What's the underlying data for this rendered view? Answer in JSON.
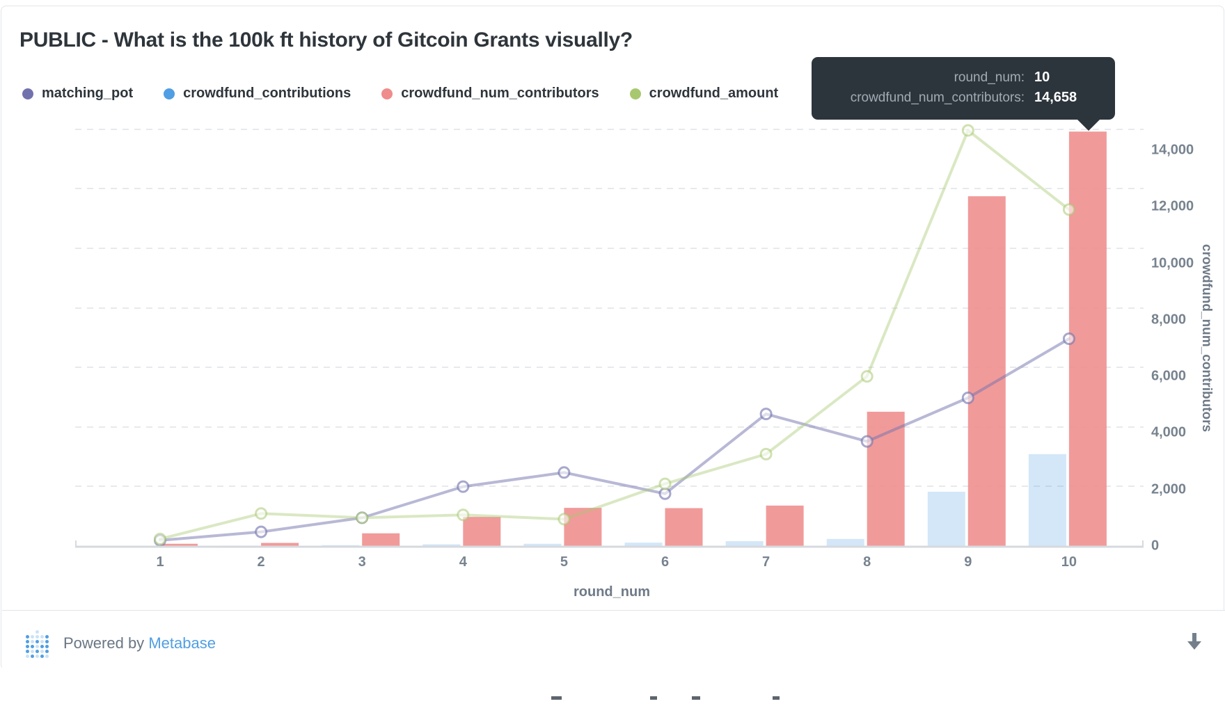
{
  "card": {
    "title": "PUBLIC - What is the 100k ft history of Gitcoin Grants visually?"
  },
  "legend": [
    {
      "label": "matching_pot",
      "color": "#7172AD"
    },
    {
      "label": "crowdfund_contributions",
      "color": "#509EE3"
    },
    {
      "label": "crowdfund_num_contributors",
      "color": "#EF8C8C"
    },
    {
      "label": "crowdfund_amount",
      "color": "#A8C870"
    }
  ],
  "tooltip": {
    "rows": [
      {
        "label": "round_num:",
        "value": "10"
      },
      {
        "label": "crowdfund_num_contributors:",
        "value": "14,658"
      }
    ]
  },
  "chart_data": {
    "type": "combo",
    "x": [
      1,
      2,
      3,
      4,
      5,
      6,
      7,
      8,
      9,
      10
    ],
    "xlabel": "round_num",
    "ylabel_right": "crowdfund_num_contributors",
    "y_axis_right": {
      "ticks": [
        0,
        2000,
        4000,
        6000,
        8000,
        10000,
        12000,
        14000
      ],
      "range": [
        0,
        15000
      ]
    },
    "gridline_values": [
      2116,
      4206,
      6322,
      8413,
      10529,
      12645,
      14735
    ],
    "legend_position": "top-left",
    "series": [
      {
        "name": "matching_pot",
        "type": "line",
        "color": "#7172AD",
        "values": [
          200,
          500,
          1000,
          2100,
          2600,
          1850,
          4670,
          3700,
          5240,
          7330
        ]
      },
      {
        "name": "crowdfund_contributions",
        "type": "bar",
        "color": "#509EE3",
        "values": [
          10,
          15,
          30,
          60,
          80,
          120,
          170,
          250,
          1920,
          3250
        ]
      },
      {
        "name": "crowdfund_num_contributors",
        "type": "bar",
        "color": "#EF8C8C",
        "values": [
          80,
          110,
          450,
          1030,
          1350,
          1340,
          1430,
          4750,
          12370,
          14658
        ]
      },
      {
        "name": "crowdfund_amount",
        "type": "line",
        "color": "#A8C870",
        "values": [
          250,
          1150,
          1000,
          1100,
          950,
          2200,
          3250,
          6000,
          14700,
          11900
        ]
      }
    ],
    "highlighted_point": {
      "series": "crowdfund_num_contributors",
      "round_num": 10,
      "value": 14658
    }
  },
  "footer": {
    "powered_by": "Powered by",
    "brand": "Metabase",
    "download_icon": "down-arrow-icon"
  }
}
